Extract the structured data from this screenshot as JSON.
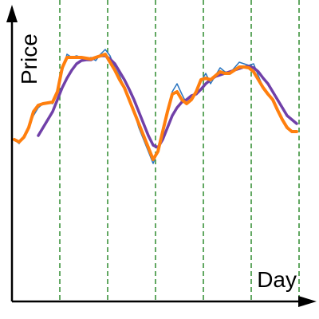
{
  "chart_data": {
    "type": "line",
    "x_label": "Day",
    "y_label": "Price",
    "x": [
      3,
      9,
      15,
      21,
      27,
      33,
      39,
      45,
      51,
      57,
      63,
      69,
      75,
      81,
      87,
      93,
      99,
      105,
      111,
      117,
      123,
      129,
      135,
      141,
      147,
      153,
      159,
      165,
      171,
      177,
      183,
      189,
      195,
      201,
      207,
      213,
      219,
      225,
      231,
      237,
      243,
      249,
      255,
      261,
      267,
      273,
      279,
      285,
      291,
      297,
      303,
      309,
      315,
      321,
      327,
      333,
      339,
      345,
      351,
      357
    ],
    "series": [
      {
        "color": "#2a75c0",
        "width": 1.5,
        "values": [
          203,
          198,
          208,
          218,
          233,
          243,
          248,
          250,
          248,
          260,
          288,
          310,
          306,
          308,
          306,
          303,
          306,
          302,
          310,
          316,
          308,
          293,
          283,
          268,
          253,
          238,
          218,
          203,
          188,
          173,
          188,
          218,
          238,
          263,
          273,
          260,
          248,
          253,
          260,
          276,
          286,
          273,
          283,
          293,
          288,
          286,
          293,
          300,
          298,
          296,
          298,
          283,
          268,
          260,
          253,
          240,
          230,
          220,
          213,
          213
        ]
      },
      {
        "color": "#7040a8",
        "width": 3.5,
        "values": [
          null,
          null,
          null,
          null,
          null,
          208,
          218,
          228,
          238,
          253,
          268,
          280,
          290,
          298,
          302,
          303,
          303,
          306,
          308,
          308,
          304,
          298,
          288,
          278,
          266,
          253,
          238,
          223,
          208,
          196,
          193,
          203,
          218,
          233,
          243,
          250,
          253,
          258,
          260,
          266,
          273,
          278,
          282,
          284,
          286,
          288,
          290,
          292,
          294,
          295,
          293,
          288,
          280,
          273,
          263,
          253,
          243,
          233,
          228,
          223
        ]
      },
      {
        "color": "#ff7f0e",
        "width": 4,
        "values": [
          203,
          200,
          206,
          218,
          238,
          246,
          248,
          249,
          250,
          263,
          293,
          306,
          306,
          306,
          306,
          305,
          304,
          306,
          308,
          310,
          300,
          290,
          278,
          268,
          253,
          238,
          223,
          208,
          193,
          178,
          188,
          213,
          238,
          260,
          263,
          253,
          248,
          253,
          263,
          278,
          280,
          278,
          283,
          288,
          286,
          286,
          290,
          294,
          294,
          293,
          288,
          278,
          268,
          260,
          253,
          240,
          228,
          218,
          213,
          213
        ]
      }
    ],
    "xlim": [
      0,
      380
    ],
    "ylim": [
      0,
      368
    ],
    "xticks": [
      60,
      120,
      180,
      240,
      300,
      360
    ],
    "grid_color": "#2e8b2e"
  }
}
